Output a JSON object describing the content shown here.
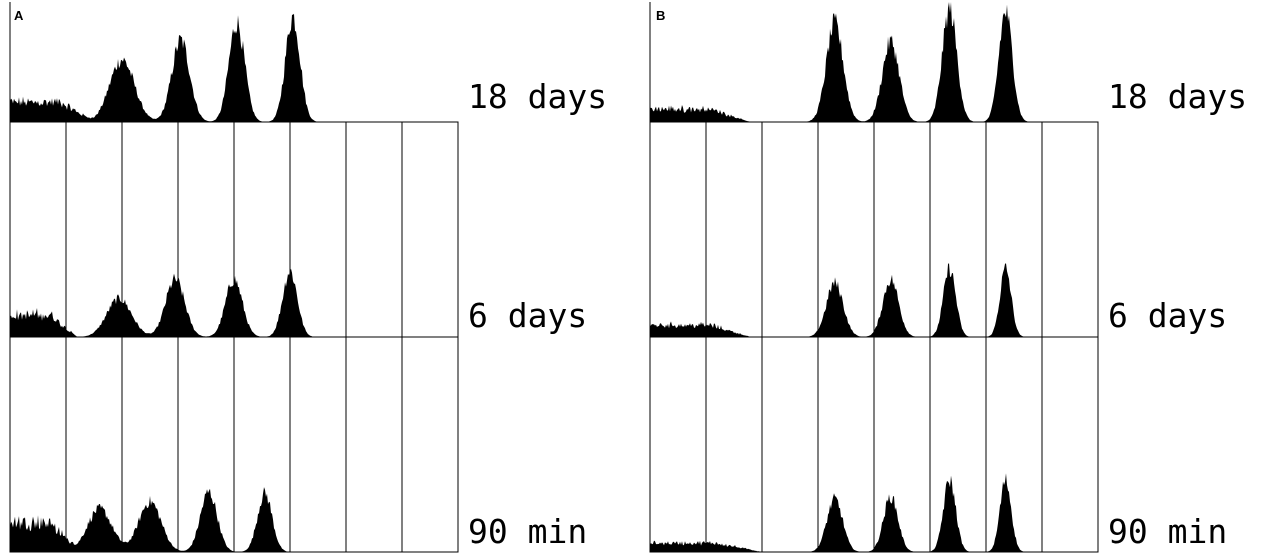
{
  "figure": {
    "panels": [
      {
        "label": "A"
      },
      {
        "label": "B"
      }
    ],
    "rows": [
      {
        "label": "18 days"
      },
      {
        "label": "6 days"
      },
      {
        "label": "90 min"
      }
    ],
    "colors": {
      "fill": "#000000",
      "background": "#ffffff",
      "line": "#000000"
    }
  },
  "chart_data": [
    {
      "type": "area",
      "panel": "A",
      "bins": 8,
      "x_range": [
        0,
        8
      ],
      "y_range": [
        0,
        1
      ],
      "grid": "vertical lines at bin boundaries",
      "rows": [
        {
          "label": "18 days",
          "noise": {
            "level": 0.2,
            "end": 1.5
          },
          "peaks": [
            {
              "x": 2.0,
              "height": 0.52,
              "width": 0.22
            },
            {
              "x": 3.05,
              "height": 0.68,
              "width": 0.16
            },
            {
              "x": 4.05,
              "height": 0.83,
              "width": 0.14
            },
            {
              "x": 5.05,
              "height": 0.88,
              "width": 0.13
            }
          ]
        },
        {
          "label": "6 days",
          "noise": {
            "level": 0.22,
            "end": 1.2
          },
          "peaks": [
            {
              "x": 1.95,
              "height": 0.32,
              "width": 0.22
            },
            {
              "x": 2.95,
              "height": 0.48,
              "width": 0.17
            },
            {
              "x": 4.0,
              "height": 0.48,
              "width": 0.15
            },
            {
              "x": 5.0,
              "height": 0.55,
              "width": 0.13
            }
          ]
        },
        {
          "label": "90 min",
          "noise": {
            "level": 0.3,
            "end": 1.2
          },
          "peaks": [
            {
              "x": 1.6,
              "height": 0.36,
              "width": 0.22
            },
            {
              "x": 2.5,
              "height": 0.42,
              "width": 0.2
            },
            {
              "x": 3.55,
              "height": 0.5,
              "width": 0.15
            },
            {
              "x": 4.55,
              "height": 0.49,
              "width": 0.13
            }
          ]
        }
      ]
    },
    {
      "type": "area",
      "panel": "B",
      "bins": 8,
      "x_range": [
        0,
        8
      ],
      "y_range": [
        0,
        1
      ],
      "grid": "vertical lines at bin boundaries",
      "rows": [
        {
          "label": "18 days",
          "noise": {
            "level": 0.13,
            "end": 1.8
          },
          "peaks": [
            {
              "x": 3.3,
              "height": 0.82,
              "width": 0.15
            },
            {
              "x": 4.3,
              "height": 0.67,
              "width": 0.15
            },
            {
              "x": 5.35,
              "height": 0.94,
              "width": 0.13
            },
            {
              "x": 6.35,
              "height": 0.92,
              "width": 0.12
            }
          ]
        },
        {
          "label": "6 days",
          "noise": {
            "level": 0.12,
            "end": 1.8
          },
          "peaks": [
            {
              "x": 3.3,
              "height": 0.45,
              "width": 0.15
            },
            {
              "x": 4.3,
              "height": 0.48,
              "width": 0.14
            },
            {
              "x": 5.35,
              "height": 0.57,
              "width": 0.11
            },
            {
              "x": 6.35,
              "height": 0.57,
              "width": 0.1
            }
          ]
        },
        {
          "label": "90 min",
          "noise": {
            "level": 0.09,
            "end": 2.0
          },
          "peaks": [
            {
              "x": 3.3,
              "height": 0.44,
              "width": 0.14
            },
            {
              "x": 4.3,
              "height": 0.46,
              "width": 0.13
            },
            {
              "x": 5.35,
              "height": 0.6,
              "width": 0.11
            },
            {
              "x": 6.35,
              "height": 0.6,
              "width": 0.1
            }
          ]
        }
      ]
    }
  ]
}
